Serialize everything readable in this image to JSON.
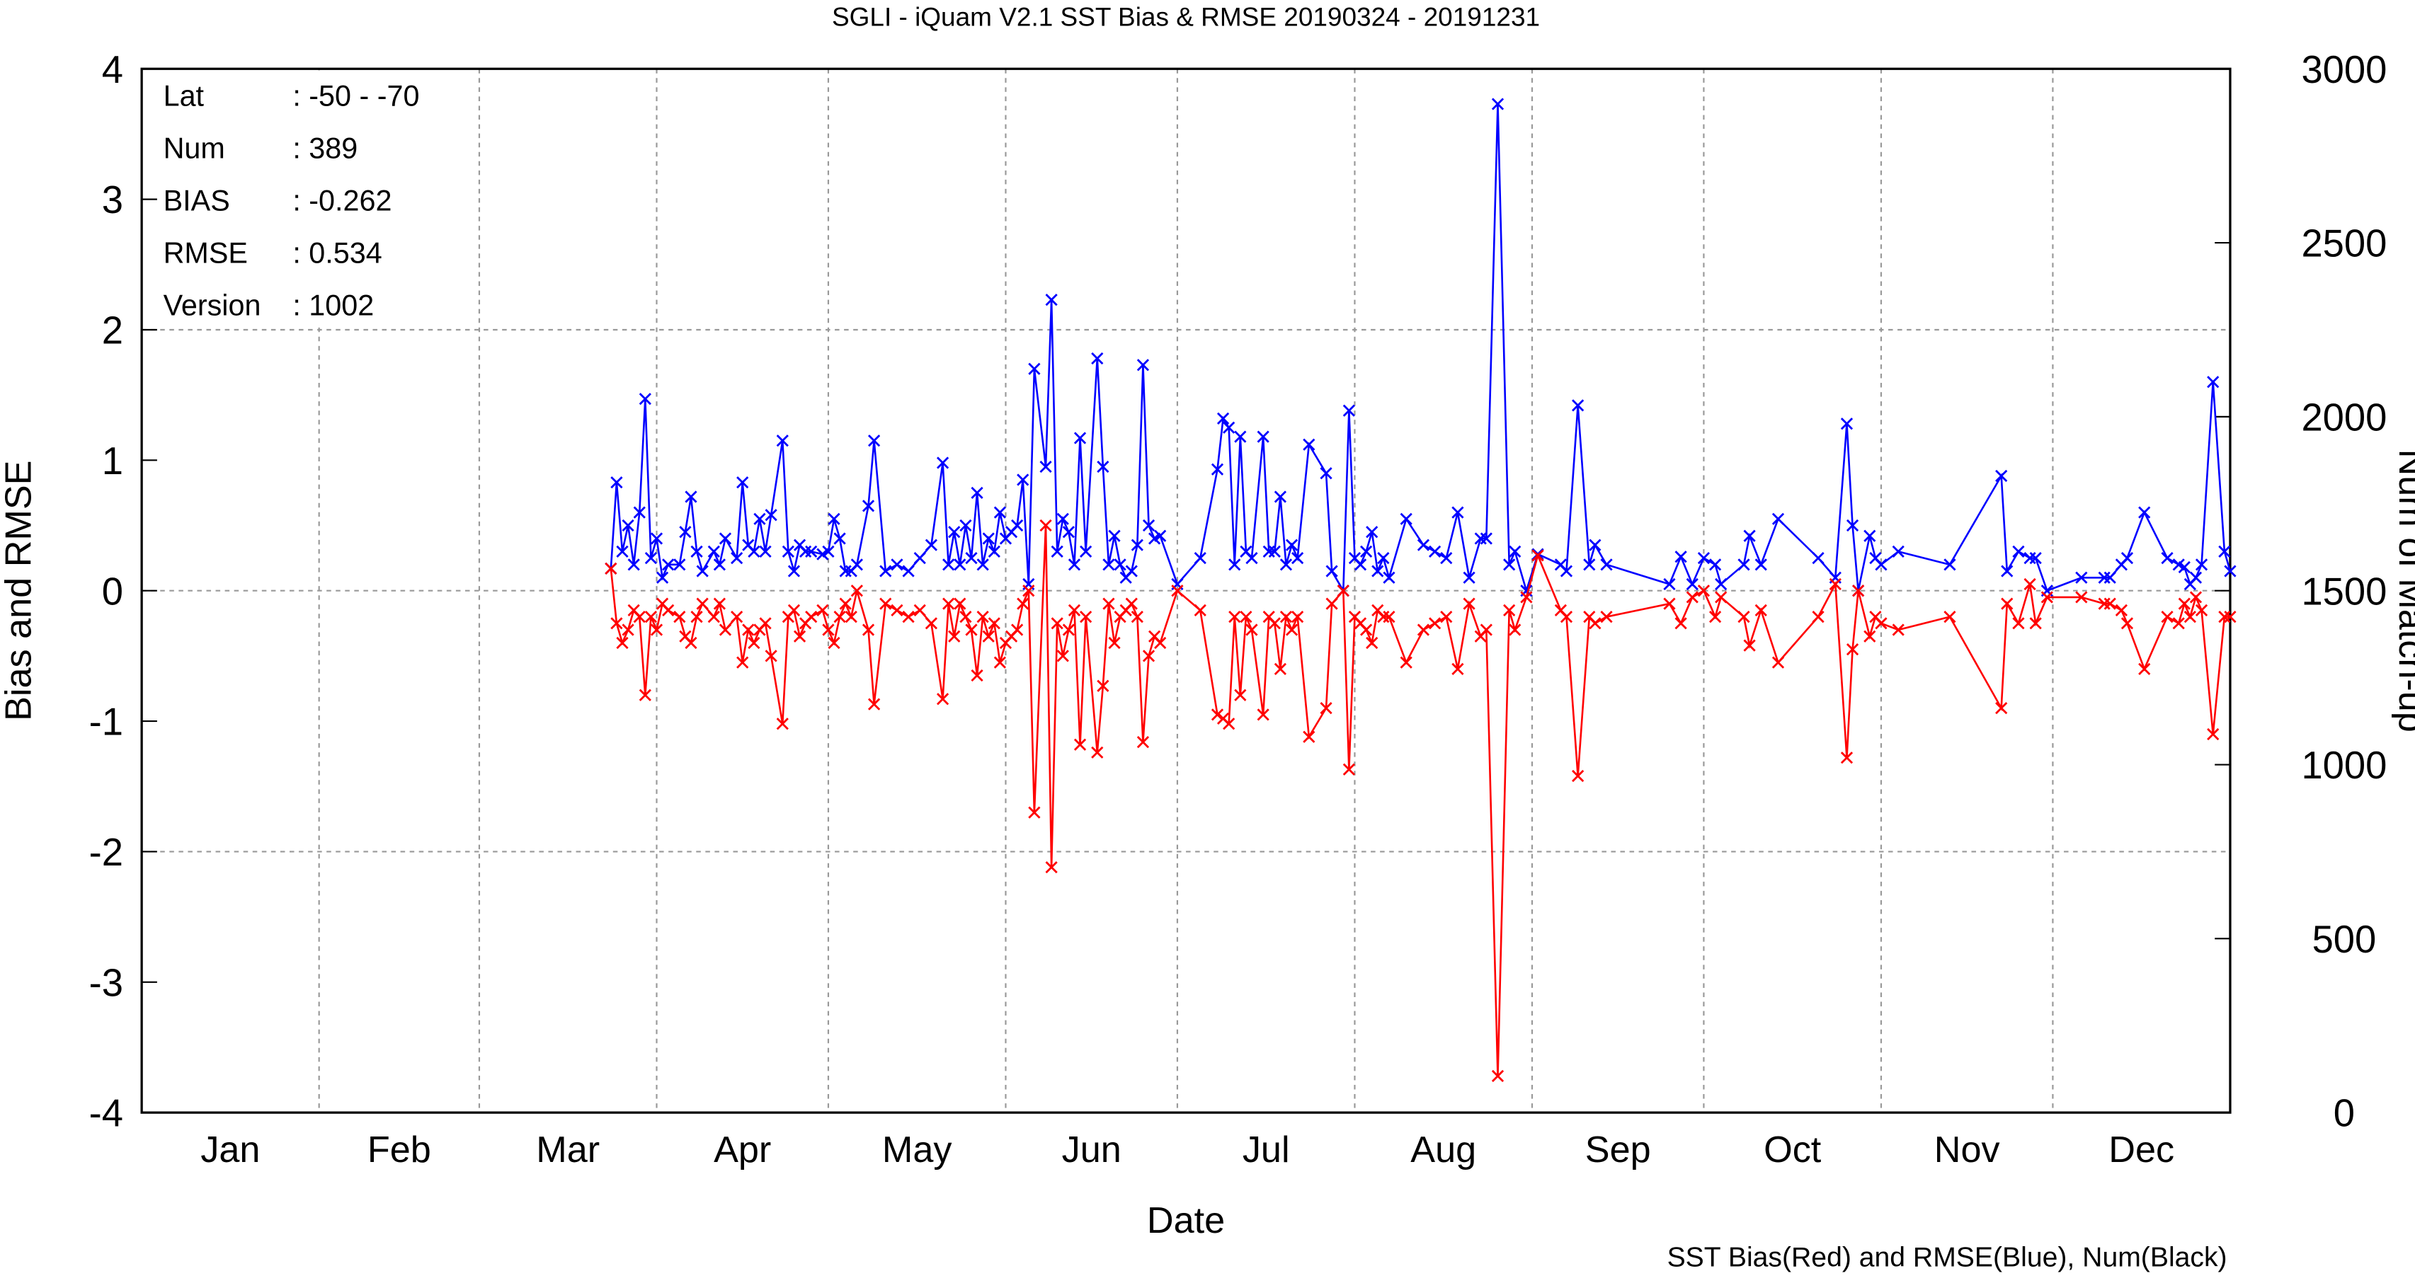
{
  "chart_data": {
    "type": "line",
    "title": "SGLI - iQuam V2.1 SST Bias & RMSE 20190324 - 20191231",
    "xlabel": "Date",
    "ylabel": "Bias and RMSE",
    "y2label": "Num of Match-up",
    "note": "SST Bias(Red) and RMSE(Blue), Num(Black)",
    "info": [
      [
        "Lat",
        ": -50 - -70"
      ],
      [
        "Num",
        ": 389"
      ],
      [
        "BIAS",
        ": -0.262"
      ],
      [
        "RMSE",
        ": 0.534"
      ],
      [
        "Version",
        ": 1002"
      ]
    ],
    "xlim": [
      0,
      365
    ],
    "xticks": [
      {
        "value": 15.5,
        "label": "Jan"
      },
      {
        "value": 45,
        "label": "Feb"
      },
      {
        "value": 74.5,
        "label": "Mar"
      },
      {
        "value": 105,
        "label": "Apr"
      },
      {
        "value": 135.5,
        "label": "May"
      },
      {
        "value": 166,
        "label": "Jun"
      },
      {
        "value": 196.5,
        "label": "Jul"
      },
      {
        "value": 227.5,
        "label": "Aug"
      },
      {
        "value": 258,
        "label": "Sep"
      },
      {
        "value": 288.5,
        "label": "Oct"
      },
      {
        "value": 319,
        "label": "Nov"
      },
      {
        "value": 349.5,
        "label": "Dec"
      }
    ],
    "xgrid": [
      31,
      59,
      90,
      120,
      151,
      181,
      212,
      243,
      273,
      304,
      334
    ],
    "ylim": [
      -4,
      4
    ],
    "yticks": [
      -4,
      -3,
      -2,
      -1,
      0,
      1,
      2,
      3,
      4
    ],
    "ygrid": [
      -2,
      0,
      2
    ],
    "y2lim": [
      0,
      3000
    ],
    "y2ticks": [
      0,
      500,
      1000,
      1500,
      2000,
      2500,
      3000
    ],
    "x": [
      82,
      83,
      84,
      85,
      86,
      87,
      88,
      89,
      90,
      91,
      92,
      94,
      95,
      96,
      97,
      98,
      100,
      101,
      102,
      104,
      105,
      106,
      107,
      108,
      109,
      110,
      112,
      113,
      114,
      115,
      116,
      117,
      119,
      120,
      121,
      122,
      123,
      124,
      125,
      127,
      128,
      130,
      132,
      134,
      136,
      138,
      140,
      141,
      142,
      143,
      144,
      145,
      146,
      147,
      148,
      149,
      150,
      151,
      152,
      153,
      154,
      155,
      156,
      158,
      159,
      160,
      161,
      162,
      163,
      164,
      165,
      167,
      168,
      169,
      170,
      171,
      172,
      173,
      174,
      175,
      176,
      177,
      178,
      181,
      185,
      188,
      189,
      190,
      191,
      192,
      193,
      194,
      196,
      197,
      198,
      199,
      200,
      201,
      202,
      204,
      207,
      208,
      210,
      211,
      212,
      213,
      214,
      215,
      216,
      217,
      218,
      221,
      224,
      226,
      228,
      230,
      232,
      234,
      235,
      237,
      239,
      240,
      242,
      244,
      248,
      249,
      251,
      253,
      254,
      256,
      267,
      269,
      271,
      273,
      275,
      276,
      280,
      281,
      283,
      286,
      293,
      296,
      298,
      299,
      300,
      302,
      303,
      304,
      307,
      316,
      325,
      326,
      328,
      330,
      331,
      333,
      339,
      343,
      344,
      346,
      347,
      350,
      354,
      356,
      357,
      358,
      359,
      360,
      362,
      364,
      365
    ],
    "series": [
      {
        "color": "#0000ff",
        "values": [
          0.17,
          0.83,
          0.3,
          0.5,
          0.2,
          0.6,
          1.47,
          0.25,
          0.4,
          0.1,
          0.2,
          0.2,
          0.45,
          0.72,
          0.3,
          0.15,
          0.3,
          0.2,
          0.4,
          0.25,
          0.83,
          0.35,
          0.3,
          0.55,
          0.3,
          0.58,
          1.15,
          0.3,
          0.15,
          0.35,
          0.3,
          0.3,
          0.28,
          0.3,
          0.55,
          0.4,
          0.15,
          0.15,
          0.2,
          0.65,
          1.15,
          0.15,
          0.2,
          0.15,
          0.25,
          0.35,
          0.98,
          0.2,
          0.45,
          0.2,
          0.5,
          0.25,
          0.75,
          0.2,
          0.4,
          0.3,
          0.6,
          0.4,
          0.45,
          0.5,
          0.85,
          0.05,
          1.7,
          0.95,
          2.23,
          0.3,
          0.55,
          0.45,
          0.2,
          1.17,
          0.3,
          1.78,
          0.95,
          0.2,
          0.42,
          0.2,
          0.1,
          0.15,
          0.35,
          1.73,
          0.5,
          0.4,
          0.42,
          0.05,
          0.25,
          0.93,
          1.32,
          1.25,
          0.2,
          1.18,
          0.3,
          0.25,
          1.18,
          0.3,
          0.3,
          0.72,
          0.2,
          0.35,
          0.25,
          1.12,
          0.9,
          0.15,
          0.0,
          1.38,
          0.25,
          0.2,
          0.3,
          0.45,
          0.15,
          0.25,
          0.1,
          0.55,
          0.35,
          0.3,
          0.25,
          0.6,
          0.1,
          0.4,
          0.4,
          3.73,
          0.2,
          0.3,
          0.0,
          0.28,
          0.2,
          0.15,
          1.42,
          0.2,
          0.35,
          0.2,
          0.05,
          0.26,
          0.05,
          0.25,
          0.2,
          0.05,
          0.2,
          0.42,
          0.2,
          0.55,
          0.25,
          0.1,
          1.28,
          0.5,
          0.0,
          0.42,
          0.25,
          0.2,
          0.3,
          0.2,
          0.88,
          0.15,
          0.3,
          0.25,
          0.25,
          0.0,
          0.1,
          0.1,
          0.1,
          0.2,
          0.25,
          0.6,
          0.25,
          0.2,
          0.18,
          0.05,
          0.1,
          0.2,
          1.6,
          0.3,
          0.15
        ]
      },
      {
        "color": "#ff0000",
        "values": [
          0.17,
          -0.25,
          -0.4,
          -0.3,
          -0.15,
          -0.2,
          -0.8,
          -0.2,
          -0.3,
          -0.1,
          -0.15,
          -0.2,
          -0.35,
          -0.4,
          -0.2,
          -0.1,
          -0.2,
          -0.1,
          -0.3,
          -0.2,
          -0.55,
          -0.3,
          -0.4,
          -0.3,
          -0.25,
          -0.5,
          -1.02,
          -0.2,
          -0.15,
          -0.35,
          -0.25,
          -0.2,
          -0.15,
          -0.3,
          -0.4,
          -0.2,
          -0.1,
          -0.2,
          0.0,
          -0.3,
          -0.87,
          -0.1,
          -0.15,
          -0.2,
          -0.15,
          -0.25,
          -0.83,
          -0.1,
          -0.35,
          -0.1,
          -0.2,
          -0.3,
          -0.65,
          -0.2,
          -0.35,
          -0.25,
          -0.55,
          -0.4,
          -0.35,
          -0.3,
          -0.1,
          0.0,
          -1.7,
          0.5,
          -2.12,
          -0.25,
          -0.5,
          -0.3,
          -0.15,
          -1.18,
          -0.2,
          -1.24,
          -0.73,
          -0.1,
          -0.4,
          -0.2,
          -0.15,
          -0.1,
          -0.2,
          -1.16,
          -0.5,
          -0.35,
          -0.4,
          0.0,
          -0.15,
          -0.95,
          -0.98,
          -1.02,
          -0.2,
          -0.8,
          -0.2,
          -0.3,
          -0.95,
          -0.2,
          -0.25,
          -0.6,
          -0.2,
          -0.3,
          -0.2,
          -1.12,
          -0.9,
          -0.1,
          0.0,
          -1.37,
          -0.2,
          -0.25,
          -0.3,
          -0.4,
          -0.15,
          -0.2,
          -0.2,
          -0.55,
          -0.3,
          -0.25,
          -0.2,
          -0.6,
          -0.1,
          -0.35,
          -0.3,
          -3.72,
          -0.15,
          -0.3,
          -0.05,
          0.27,
          -0.15,
          -0.2,
          -1.42,
          -0.2,
          -0.25,
          -0.2,
          -0.1,
          -0.25,
          -0.05,
          0.0,
          -0.2,
          -0.05,
          -0.2,
          -0.42,
          -0.15,
          -0.55,
          -0.2,
          0.05,
          -1.28,
          -0.45,
          0.0,
          -0.35,
          -0.2,
          -0.25,
          -0.3,
          -0.2,
          -0.9,
          -0.1,
          -0.25,
          0.05,
          -0.25,
          -0.05,
          -0.05,
          -0.1,
          -0.1,
          -0.15,
          -0.25,
          -0.6,
          -0.2,
          -0.25,
          -0.1,
          -0.2,
          -0.05,
          -0.15,
          -1.1,
          -0.2,
          -0.2
        ]
      }
    ]
  }
}
